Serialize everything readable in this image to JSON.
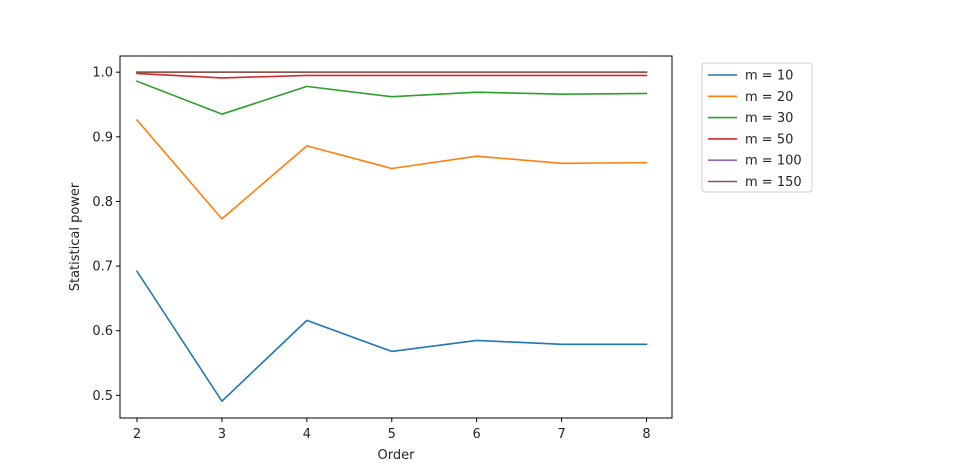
{
  "chart_data": {
    "type": "line",
    "title": "",
    "xlabel": "Order",
    "ylabel": "Statistical power",
    "x": [
      2,
      3,
      4,
      5,
      6,
      7,
      8
    ],
    "xlim": [
      1.8,
      8.3
    ],
    "ylim": [
      0.465,
      1.025
    ],
    "xticks": [
      2,
      3,
      4,
      5,
      6,
      7,
      8
    ],
    "yticks": [
      0.5,
      0.6,
      0.7,
      0.8,
      0.9,
      1.0
    ],
    "ytick_labels": [
      "0.5",
      "0.6",
      "0.7",
      "0.8",
      "0.9",
      "1.0"
    ],
    "grid": false,
    "legend_placement": "outside-top-right",
    "series": [
      {
        "name": "m = 10",
        "color": "#1f77b4",
        "values": [
          0.692,
          0.491,
          0.616,
          0.568,
          0.585,
          0.579,
          0.579
        ]
      },
      {
        "name": "m = 20",
        "color": "#ff7f0e",
        "values": [
          0.926,
          0.773,
          0.886,
          0.851,
          0.87,
          0.859,
          0.86
        ]
      },
      {
        "name": "m = 30",
        "color": "#2ca02c",
        "values": [
          0.986,
          0.935,
          0.978,
          0.962,
          0.969,
          0.966,
          0.967
        ]
      },
      {
        "name": "m = 50",
        "color": "#d62728",
        "values": [
          0.998,
          0.991,
          0.995,
          0.995,
          0.995,
          0.995,
          0.995
        ]
      },
      {
        "name": "m = 100",
        "color": "#9467bd",
        "values": [
          1.0,
          1.0,
          1.0,
          1.0,
          1.0,
          1.0,
          1.0
        ]
      },
      {
        "name": "m = 150",
        "color": "#8c564b",
        "values": [
          1.0,
          1.0,
          1.0,
          1.0,
          1.0,
          1.0,
          1.0
        ]
      }
    ]
  }
}
